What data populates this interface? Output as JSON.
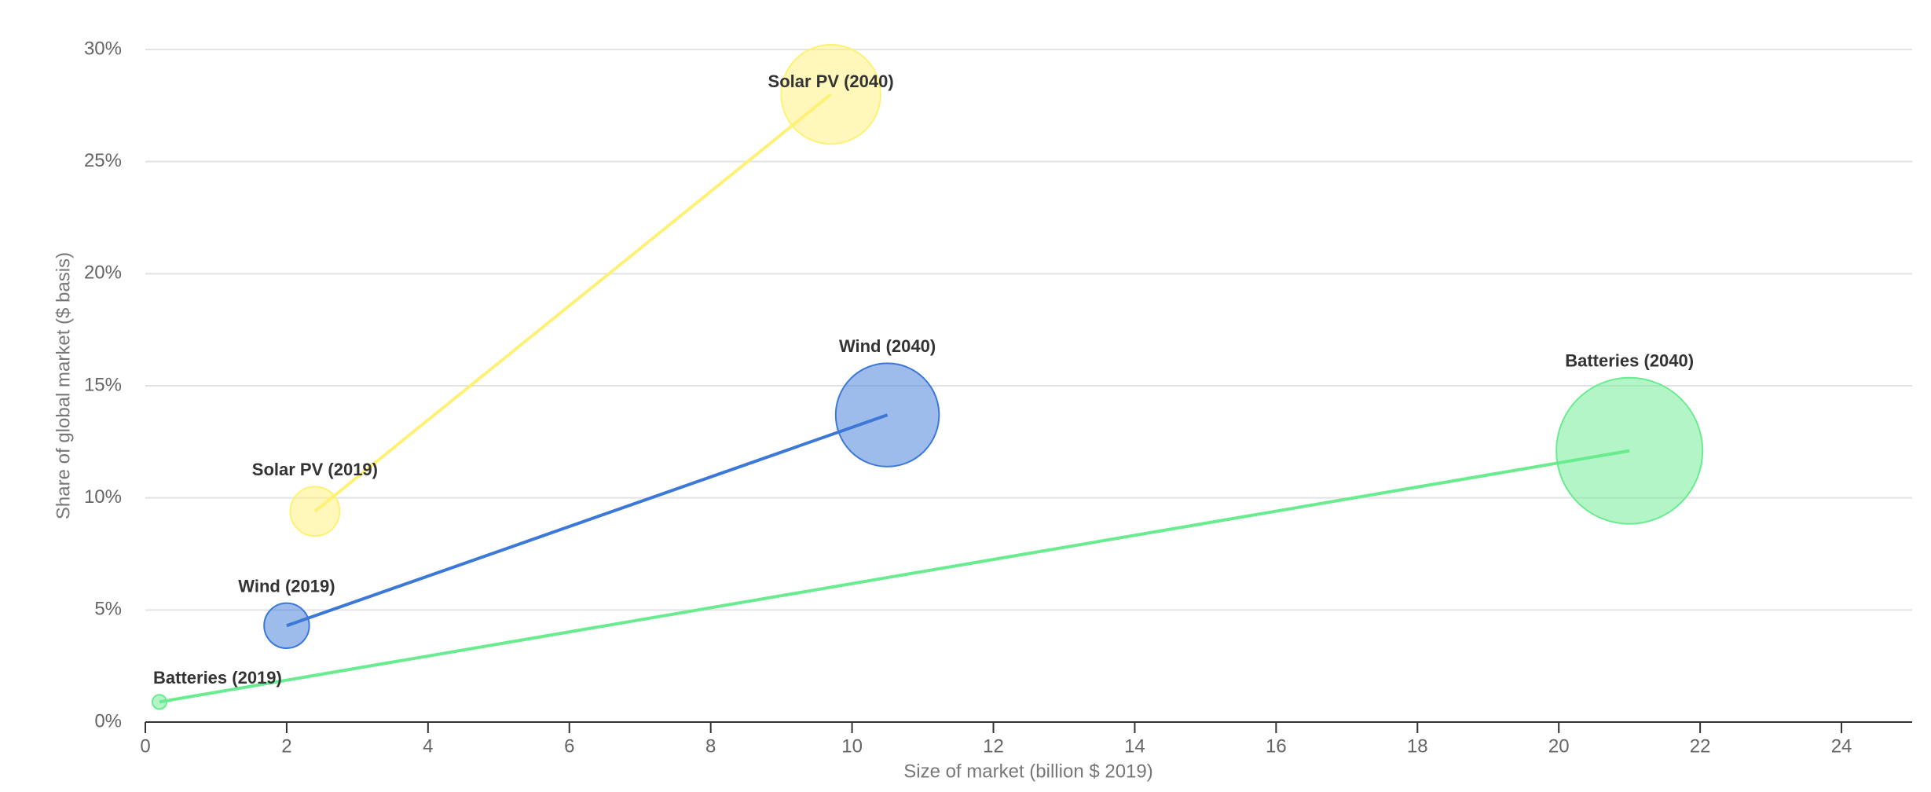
{
  "chart_data": {
    "type": "bubble-path",
    "x_label": "Size of market (billion $ 2019)",
    "y_label": "Share of global market ($ basis)",
    "xlim": [
      0,
      25
    ],
    "xticks": [
      0,
      2,
      4,
      6,
      8,
      10,
      12,
      14,
      16,
      18,
      20,
      22,
      24
    ],
    "ylim": [
      0,
      30
    ],
    "yticks": [
      {
        "value": 0,
        "label": "0%"
      },
      {
        "value": 5,
        "label": "5%"
      },
      {
        "value": 10,
        "label": "10%"
      },
      {
        "value": 15,
        "label": "15%"
      },
      {
        "value": 20,
        "label": "20%"
      },
      {
        "value": 25,
        "label": "25%"
      },
      {
        "value": 30,
        "label": "30%"
      }
    ],
    "grid": true,
    "series": [
      {
        "color": "#fff176",
        "x": [
          2.4,
          9.7
        ],
        "values": [
          9.4,
          28.0
        ],
        "labels": [
          "Solar PV (2019)",
          "Solar PV (2040)"
        ]
      },
      {
        "color": "#3c78d8",
        "x": [
          2.0,
          10.5
        ],
        "values": [
          4.3,
          13.7
        ],
        "labels": [
          "Wind (2019)",
          "Wind (2040)"
        ]
      },
      {
        "color": "#69ec8f",
        "x": [
          0.2,
          21.0
        ],
        "values": [
          0.9,
          12.1
        ],
        "labels": [
          "Batteries (2019)",
          "Batteries (2040)"
        ]
      }
    ]
  }
}
